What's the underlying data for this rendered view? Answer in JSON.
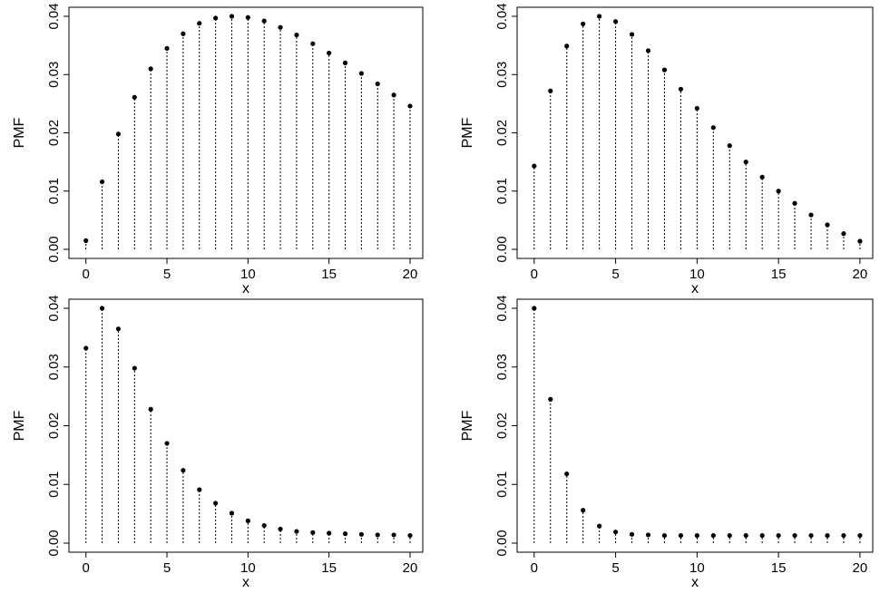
{
  "chart_data": [
    {
      "type": "scatter",
      "xlabel": "x",
      "ylabel": "PMF",
      "xlim": [
        0,
        20
      ],
      "ylim": [
        0,
        0.04
      ],
      "xticks": [
        "0",
        "5",
        "10",
        "15",
        "20"
      ],
      "yticks": [
        "0.00",
        "0.01",
        "0.02",
        "0.03",
        "0.04"
      ],
      "x": [
        0,
        1,
        2,
        3,
        4,
        5,
        6,
        7,
        8,
        9,
        10,
        11,
        12,
        13,
        14,
        15,
        16,
        17,
        18,
        19,
        20
      ],
      "values": [
        0.0015,
        0.0116,
        0.0198,
        0.0261,
        0.031,
        0.0345,
        0.037,
        0.0388,
        0.0397,
        0.04,
        0.0398,
        0.0392,
        0.0381,
        0.0368,
        0.0353,
        0.0337,
        0.032,
        0.0302,
        0.0284,
        0.0265,
        0.0246
      ]
    },
    {
      "type": "scatter",
      "xlabel": "x",
      "ylabel": "PMF",
      "xlim": [
        0,
        20
      ],
      "ylim": [
        0,
        0.04
      ],
      "xticks": [
        "0",
        "5",
        "10",
        "15",
        "20"
      ],
      "yticks": [
        "0.00",
        "0.01",
        "0.02",
        "0.03",
        "0.04"
      ],
      "x": [
        0,
        1,
        2,
        3,
        4,
        5,
        6,
        7,
        8,
        9,
        10,
        11,
        12,
        13,
        14,
        15,
        16,
        17,
        18,
        19,
        20
      ],
      "values": [
        0.0143,
        0.0272,
        0.0349,
        0.0387,
        0.04,
        0.0391,
        0.0369,
        0.0341,
        0.0308,
        0.0275,
        0.0242,
        0.0209,
        0.0178,
        0.015,
        0.0124,
        0.01,
        0.0079,
        0.0059,
        0.0042,
        0.0027,
        0.0014
      ]
    },
    {
      "type": "scatter",
      "xlabel": "x",
      "ylabel": "PMF",
      "xlim": [
        0,
        20
      ],
      "ylim": [
        0,
        0.04
      ],
      "xticks": [
        "0",
        "5",
        "10",
        "15",
        "20"
      ],
      "yticks": [
        "0.00",
        "0.01",
        "0.02",
        "0.03",
        "0.04"
      ],
      "x": [
        0,
        1,
        2,
        3,
        4,
        5,
        6,
        7,
        8,
        9,
        10,
        11,
        12,
        13,
        14,
        15,
        16,
        17,
        18,
        19,
        20
      ],
      "values": [
        0.0332,
        0.04,
        0.0365,
        0.0298,
        0.0228,
        0.017,
        0.0124,
        0.0091,
        0.0068,
        0.0051,
        0.0038,
        0.003,
        0.0024,
        0.002,
        0.0018,
        0.0017,
        0.0016,
        0.0015,
        0.0014,
        0.0014,
        0.0013
      ]
    },
    {
      "type": "scatter",
      "xlabel": "x",
      "ylabel": "PMF",
      "xlim": [
        0,
        20
      ],
      "ylim": [
        0,
        0.04
      ],
      "xticks": [
        "0",
        "5",
        "10",
        "15",
        "20"
      ],
      "yticks": [
        "0.00",
        "0.01",
        "0.02",
        "0.03",
        "0.04"
      ],
      "x": [
        0,
        1,
        2,
        3,
        4,
        5,
        6,
        7,
        8,
        9,
        10,
        11,
        12,
        13,
        14,
        15,
        16,
        17,
        18,
        19,
        20
      ],
      "values": [
        0.04,
        0.0245,
        0.0118,
        0.0056,
        0.0029,
        0.0019,
        0.0015,
        0.0014,
        0.0013,
        0.0013,
        0.0013,
        0.0013,
        0.0013,
        0.0013,
        0.0013,
        0.0013,
        0.0013,
        0.0013,
        0.0013,
        0.0013,
        0.0013
      ]
    }
  ]
}
